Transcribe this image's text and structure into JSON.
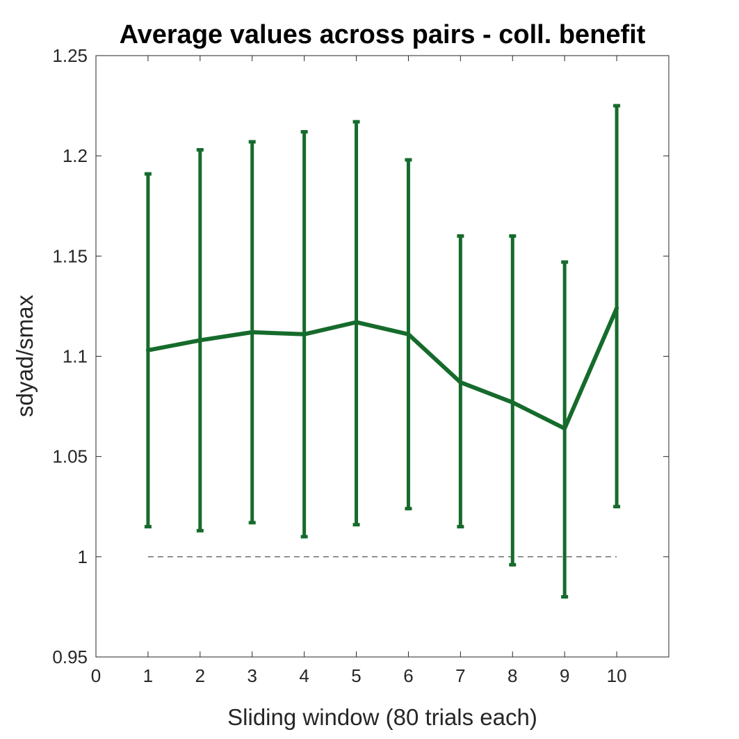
{
  "chart_data": {
    "type": "line",
    "title": "Average values across pairs - coll. benefit",
    "xlabel": "Sliding window (80 trials each)",
    "ylabel": "sdyad/smax",
    "xlim": [
      0,
      11
    ],
    "ylim": [
      0.95,
      1.25
    ],
    "xticks": [
      "0",
      "1",
      "2",
      "3",
      "4",
      "5",
      "6",
      "7",
      "8",
      "9",
      "10"
    ],
    "yticks": [
      "0.95",
      "1",
      "1.05",
      "1.1",
      "1.15",
      "1.2",
      "1.25"
    ],
    "grid": false,
    "series": [
      {
        "color": "#166B2C",
        "x": [
          1,
          2,
          3,
          4,
          5,
          6,
          7,
          8,
          9,
          10
        ],
        "values": [
          1.103,
          1.108,
          1.112,
          1.111,
          1.117,
          1.111,
          1.087,
          1.077,
          1.064,
          1.124
        ],
        "lower": [
          1.015,
          1.013,
          1.017,
          1.01,
          1.016,
          1.024,
          1.015,
          0.996,
          0.98,
          1.025
        ],
        "upper": [
          1.191,
          1.203,
          1.207,
          1.212,
          1.217,
          1.198,
          1.16,
          1.16,
          1.147,
          1.225
        ]
      }
    ],
    "reference_line": {
      "y": 1.0,
      "x_start": 1,
      "x_end": 10,
      "style": "dashed",
      "color": "#262626"
    }
  }
}
